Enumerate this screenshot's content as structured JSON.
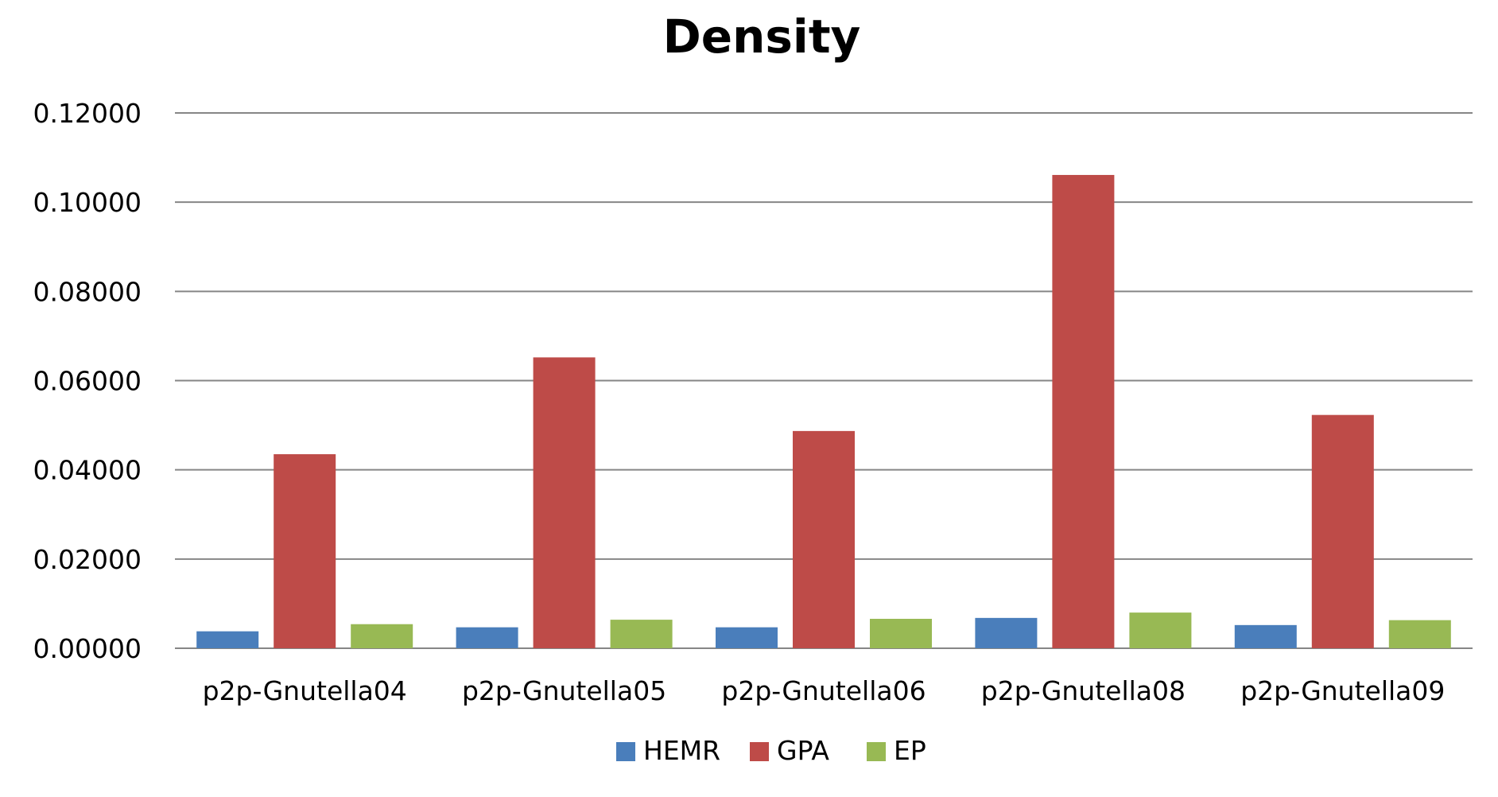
{
  "chart_data": {
    "type": "bar",
    "title": "Density",
    "xlabel": "",
    "ylabel": "",
    "ylim": [
      0,
      0.12
    ],
    "yticks": [
      "0.00000",
      "0.02000",
      "0.04000",
      "0.06000",
      "0.08000",
      "0.10000",
      "0.12000"
    ],
    "ytick_values": [
      0,
      0.02,
      0.04,
      0.06,
      0.08,
      0.1,
      0.12
    ],
    "categories": [
      "p2p-Gnutella04",
      "p2p-Gnutella05",
      "p2p-Gnutella06",
      "p2p-Gnutella08",
      "p2p-Gnutella09"
    ],
    "series": [
      {
        "name": "HEMR",
        "color": "#4a7ebb",
        "values": [
          0.0038,
          0.0047,
          0.0047,
          0.0068,
          0.0052
        ]
      },
      {
        "name": "GPA",
        "color": "#be4b48",
        "values": [
          0.0435,
          0.0652,
          0.0487,
          0.1061,
          0.0523
        ]
      },
      {
        "name": "EP",
        "color": "#98b954",
        "values": [
          0.0054,
          0.0064,
          0.0066,
          0.008,
          0.0063
        ]
      }
    ],
    "grid": true,
    "legend_position": "bottom"
  }
}
